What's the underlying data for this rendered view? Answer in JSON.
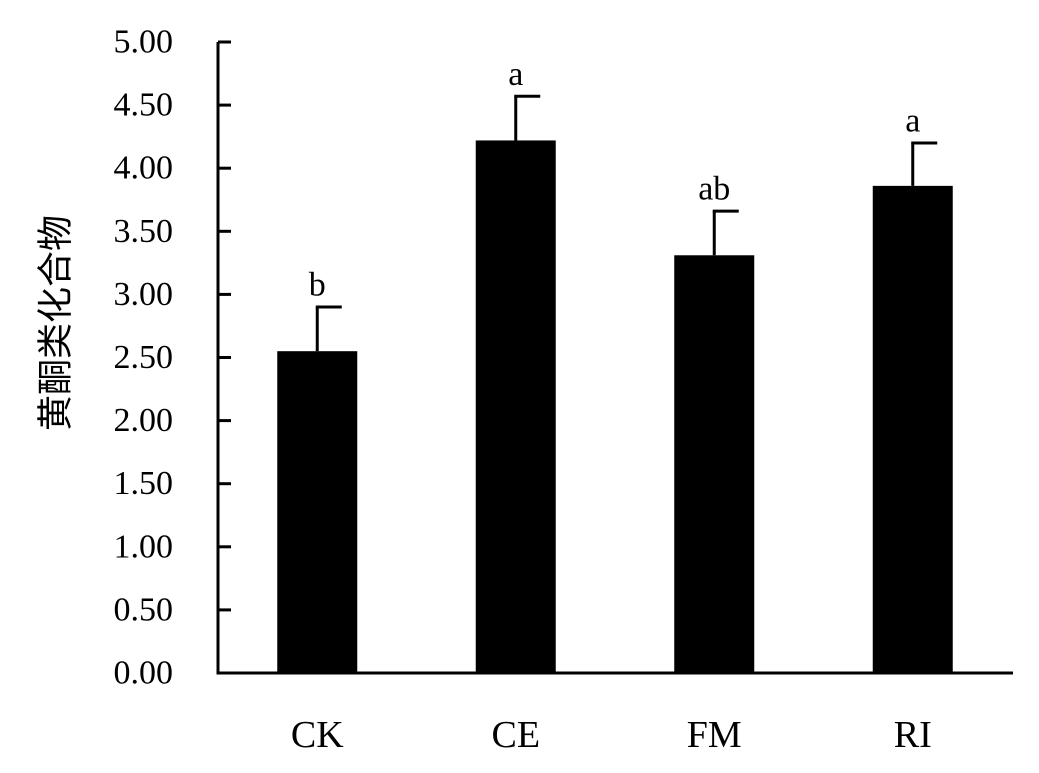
{
  "chart_data": {
    "type": "bar",
    "title": "",
    "xlabel": "",
    "ylabel": "黄酮类化合物",
    "ylim": [
      0,
      5
    ],
    "yticks": [
      "0.00",
      "0.50",
      "1.00",
      "1.50",
      "2.00",
      "2.50",
      "3.00",
      "3.50",
      "4.00",
      "4.50",
      "5.00"
    ],
    "categories": [
      "CK",
      "CE",
      "FM",
      "RI"
    ],
    "values": [
      2.55,
      4.22,
      3.31,
      3.86
    ],
    "errors": [
      0.35,
      0.35,
      0.35,
      0.34
    ],
    "significance": [
      "b",
      "a",
      "ab",
      "a"
    ],
    "bar_color": "#000000",
    "grid": false,
    "legend": "none"
  }
}
